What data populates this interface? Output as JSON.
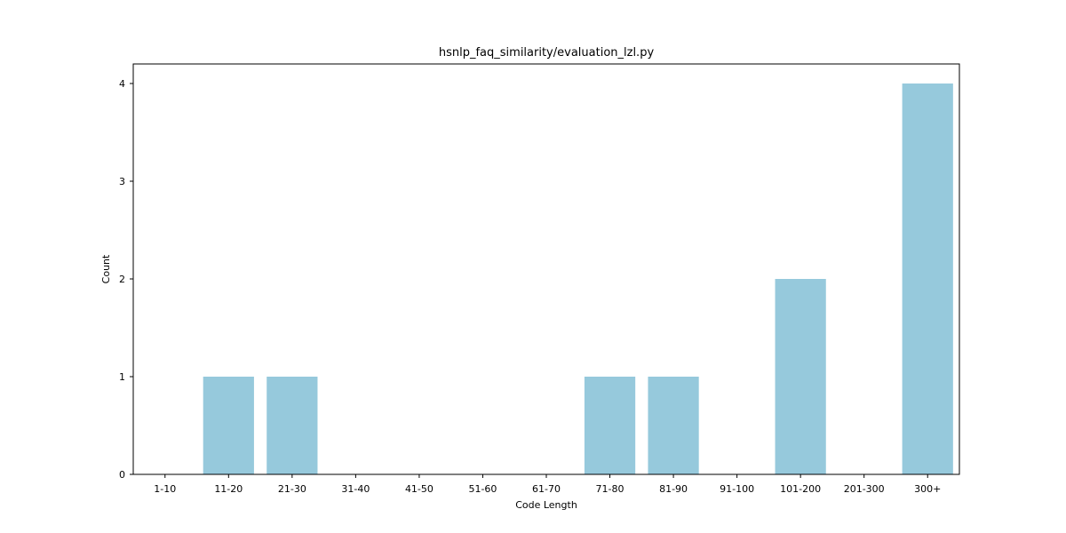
{
  "chart_data": {
    "type": "bar",
    "title": "hsnlp_faq_similarity/evaluation_lzl.py",
    "xlabel": "Code Length",
    "ylabel": "Count",
    "categories": [
      "1-10",
      "11-20",
      "21-30",
      "31-40",
      "41-50",
      "51-60",
      "61-70",
      "71-80",
      "81-90",
      "91-100",
      "101-200",
      "201-300",
      "300+"
    ],
    "values": [
      0,
      1,
      1,
      0,
      0,
      0,
      0,
      1,
      1,
      0,
      2,
      0,
      4
    ],
    "ylim": [
      0,
      4.2
    ],
    "yticks": [
      0,
      1,
      2,
      3,
      4
    ],
    "bar_color": "#96c9dc",
    "grid": false,
    "legend": "none"
  }
}
